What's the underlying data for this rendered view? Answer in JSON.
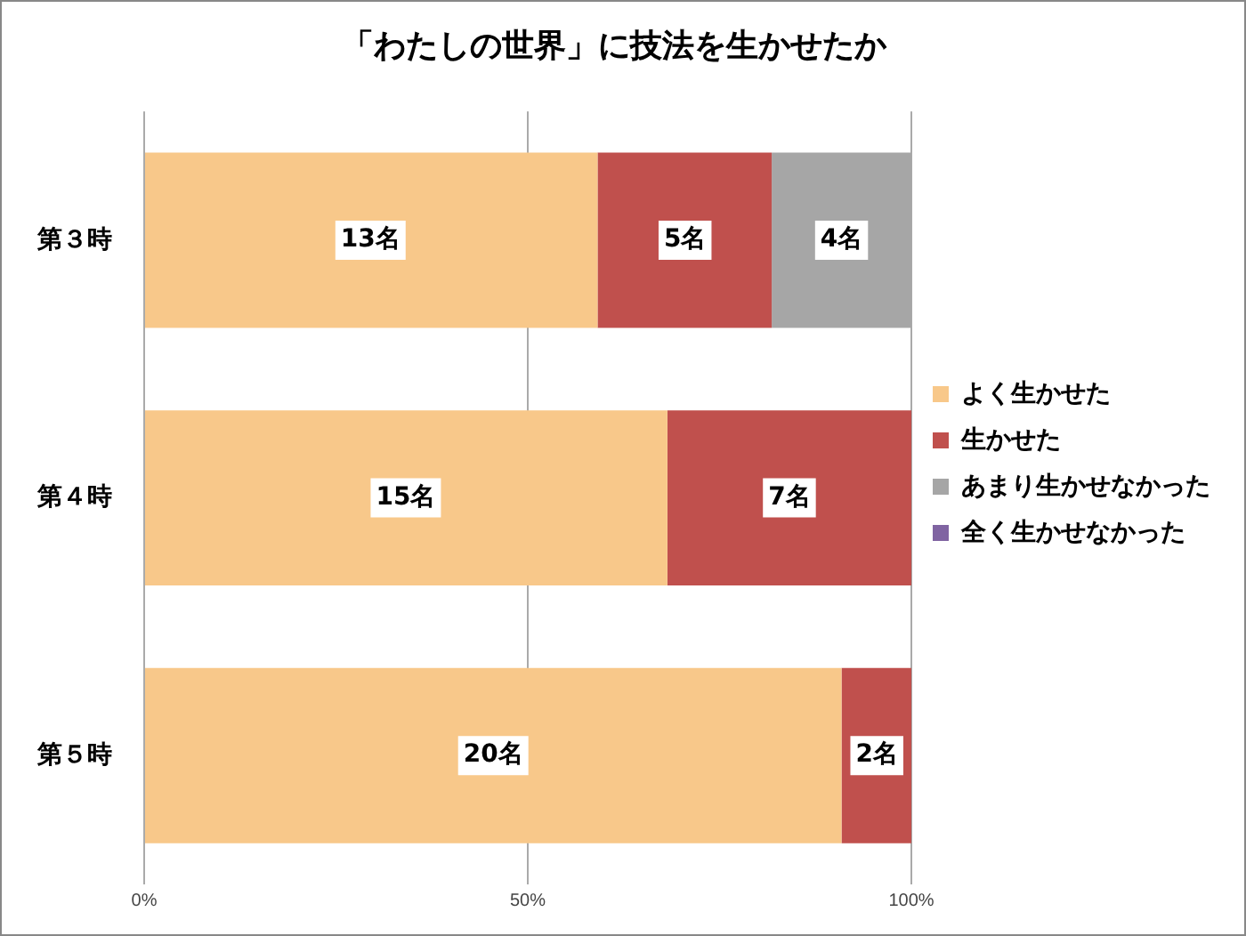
{
  "chart_data": {
    "type": "bar",
    "orientation": "horizontal",
    "stacked": true,
    "title": "「わたしの世界」に技法を生かせたか",
    "categories": [
      "第３時",
      "第４時",
      "第５時"
    ],
    "series": [
      {
        "name": "よく生かせた",
        "color": "#f8c88a",
        "values": [
          59.1,
          68.2,
          90.9
        ]
      },
      {
        "name": "生かせた",
        "color": "#c0504d",
        "values": [
          22.7,
          31.8,
          9.1
        ]
      },
      {
        "name": "あまり生かせなかった",
        "color": "#a6a6a6",
        "values": [
          18.2,
          0,
          0
        ]
      },
      {
        "name": "全く生かせなかった",
        "color": "#8064a2",
        "values": [
          0,
          0,
          0
        ]
      }
    ],
    "annotations": [
      {
        "text": "13名",
        "x": 29.5,
        "y": "第３時"
      },
      {
        "text": "5名",
        "x": 70.5,
        "y": "第３時"
      },
      {
        "text": "4名",
        "x": 90.9,
        "y": "第３時"
      },
      {
        "text": "15名",
        "x": 34.1,
        "y": "第４時"
      },
      {
        "text": "7名",
        "x": 84.1,
        "y": "第４時"
      },
      {
        "text": "20名",
        "x": 45.5,
        "y": "第５時"
      },
      {
        "text": "2名",
        "x": 95.5,
        "y": "第５時"
      }
    ],
    "xlim": [
      0,
      100
    ],
    "xticks": [
      {
        "value": 0,
        "label": "0%"
      },
      {
        "value": 50,
        "label": "50%"
      },
      {
        "value": 100,
        "label": "100%"
      }
    ],
    "grid": "x",
    "legend": "right"
  }
}
